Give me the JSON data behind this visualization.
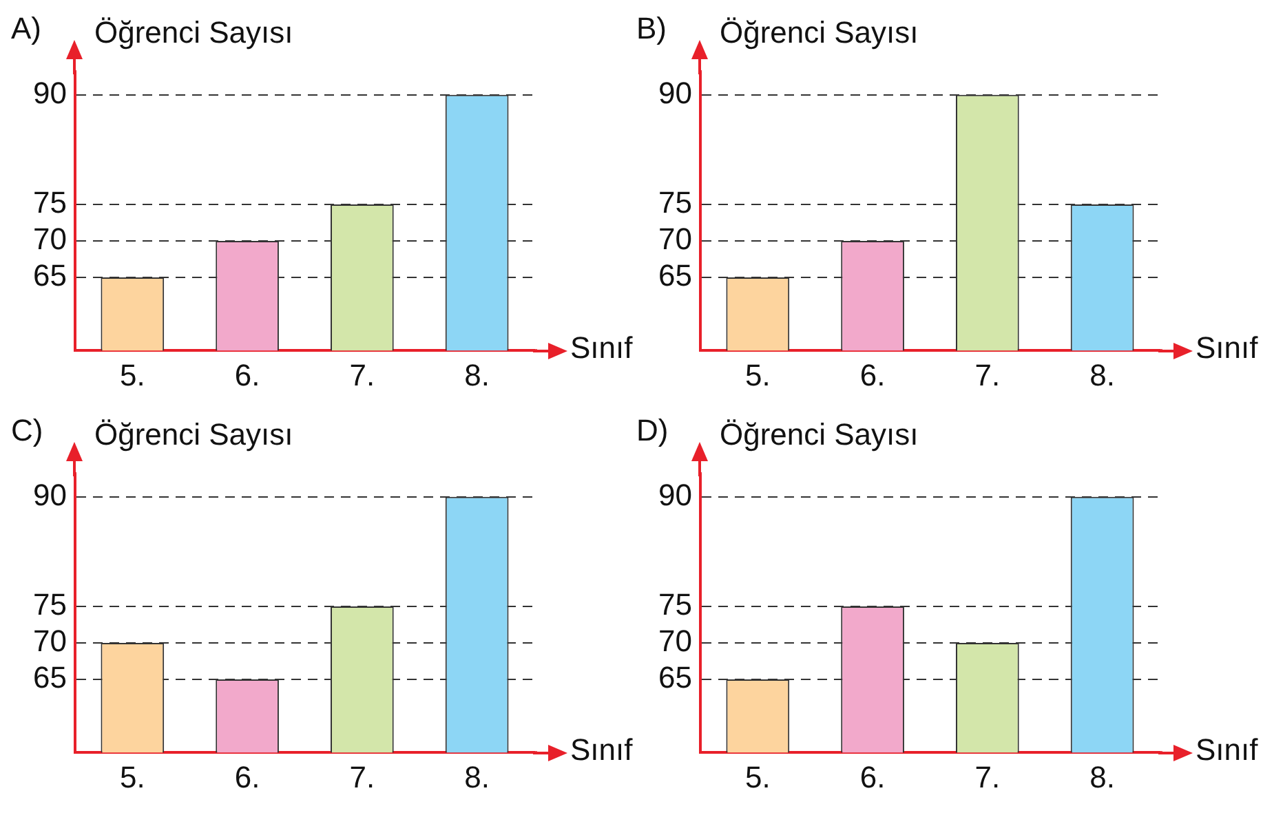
{
  "chart_data": [
    {
      "type": "bar",
      "title": "A)",
      "xlabel": "Sınıf",
      "ylabel": "Öğrenci Sayısı",
      "categories": [
        "5.",
        "6.",
        "7.",
        "8."
      ],
      "values": [
        65,
        70,
        75,
        90
      ],
      "colors": [
        "#fdd49e",
        "#f2a9cb",
        "#d3e6aa",
        "#8dd6f5"
      ],
      "ylim": [
        55,
        93
      ],
      "yticks": [
        65,
        70,
        75,
        90
      ],
      "grid": "y"
    },
    {
      "type": "bar",
      "title": "B)",
      "xlabel": "Sınıf",
      "ylabel": "Öğrenci Sayısı",
      "categories": [
        "5.",
        "6.",
        "7.",
        "8."
      ],
      "values": [
        65,
        70,
        90,
        75
      ],
      "colors": [
        "#fdd49e",
        "#f2a9cb",
        "#d3e6aa",
        "#8dd6f5"
      ],
      "ylim": [
        55,
        93
      ],
      "yticks": [
        65,
        70,
        75,
        90
      ],
      "grid": "y"
    },
    {
      "type": "bar",
      "title": "C)",
      "xlabel": "Sınıf",
      "ylabel": "Öğrenci Sayısı",
      "categories": [
        "5.",
        "6.",
        "7.",
        "8."
      ],
      "values": [
        70,
        65,
        75,
        90
      ],
      "colors": [
        "#fdd49e",
        "#f2a9cb",
        "#d3e6aa",
        "#8dd6f5"
      ],
      "ylim": [
        55,
        93
      ],
      "yticks": [
        65,
        70,
        75,
        90
      ],
      "grid": "y"
    },
    {
      "type": "bar",
      "title": "D)",
      "xlabel": "Sınıf",
      "ylabel": "Öğrenci Sayısı",
      "categories": [
        "5.",
        "6.",
        "7.",
        "8."
      ],
      "values": [
        65,
        75,
        70,
        90
      ],
      "colors": [
        "#fdd49e",
        "#f2a9cb",
        "#d3e6aa",
        "#8dd6f5"
      ],
      "ylim": [
        55,
        93
      ],
      "yticks": [
        65,
        70,
        75,
        90
      ],
      "grid": "y"
    }
  ]
}
